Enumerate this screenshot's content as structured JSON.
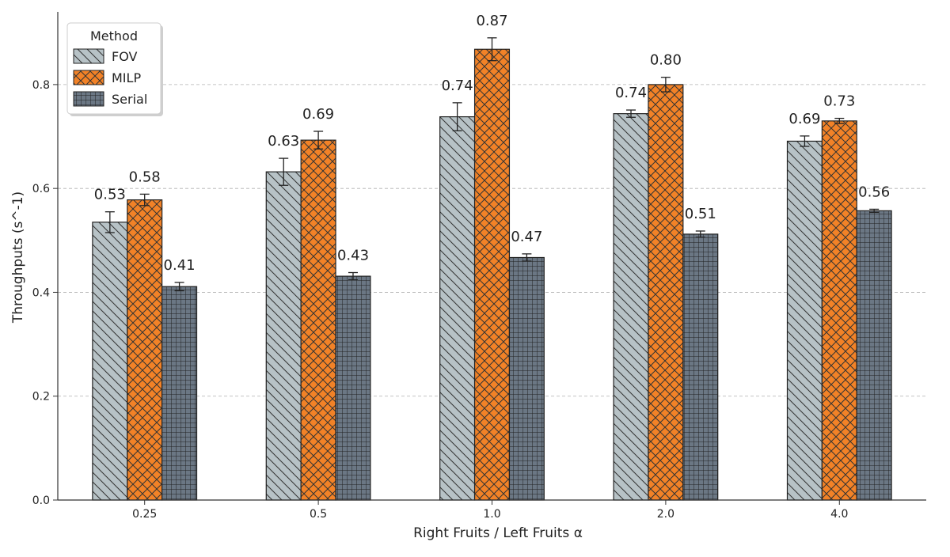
{
  "chart_data": {
    "type": "bar",
    "title": "",
    "xlabel": "Right Fruits / Left Fruits α",
    "ylabel": "Throughputs (s^-1)",
    "categories": [
      "0.25",
      "0.5",
      "1.0",
      "2.0",
      "4.0"
    ],
    "ylim": [
      0,
      0.94
    ],
    "yticks": [
      0.0,
      0.2,
      0.4,
      0.6,
      0.8
    ],
    "ytick_labels": [
      "0.0",
      "0.2",
      "0.4",
      "0.6",
      "0.8"
    ],
    "grid": "horizontal dashed",
    "legend": {
      "title": "Method",
      "placement": "top-left"
    },
    "series": [
      {
        "name": "FOV",
        "color": "#b7c2c6",
        "hatch": "diagonal",
        "values": [
          0.535,
          0.632,
          0.738,
          0.744,
          0.691
        ],
        "errors": [
          0.02,
          0.026,
          0.027,
          0.007,
          0.01
        ],
        "labels": [
          "0.53",
          "0.63",
          "0.74",
          "0.74",
          "0.69"
        ]
      },
      {
        "name": "MILP",
        "color": "#f28227",
        "hatch": "crosshatch",
        "values": [
          0.578,
          0.693,
          0.868,
          0.8,
          0.73
        ],
        "errors": [
          0.011,
          0.017,
          0.022,
          0.014,
          0.005
        ],
        "labels": [
          "0.58",
          "0.69",
          "0.87",
          "0.80",
          "0.73"
        ]
      },
      {
        "name": "Serial",
        "color": "#6b7784",
        "hatch": "grid",
        "values": [
          0.411,
          0.431,
          0.467,
          0.512,
          0.557
        ],
        "errors": [
          0.008,
          0.007,
          0.007,
          0.006,
          0.003
        ],
        "labels": [
          "0.41",
          "0.43",
          "0.47",
          "0.51",
          "0.56"
        ]
      }
    ]
  }
}
